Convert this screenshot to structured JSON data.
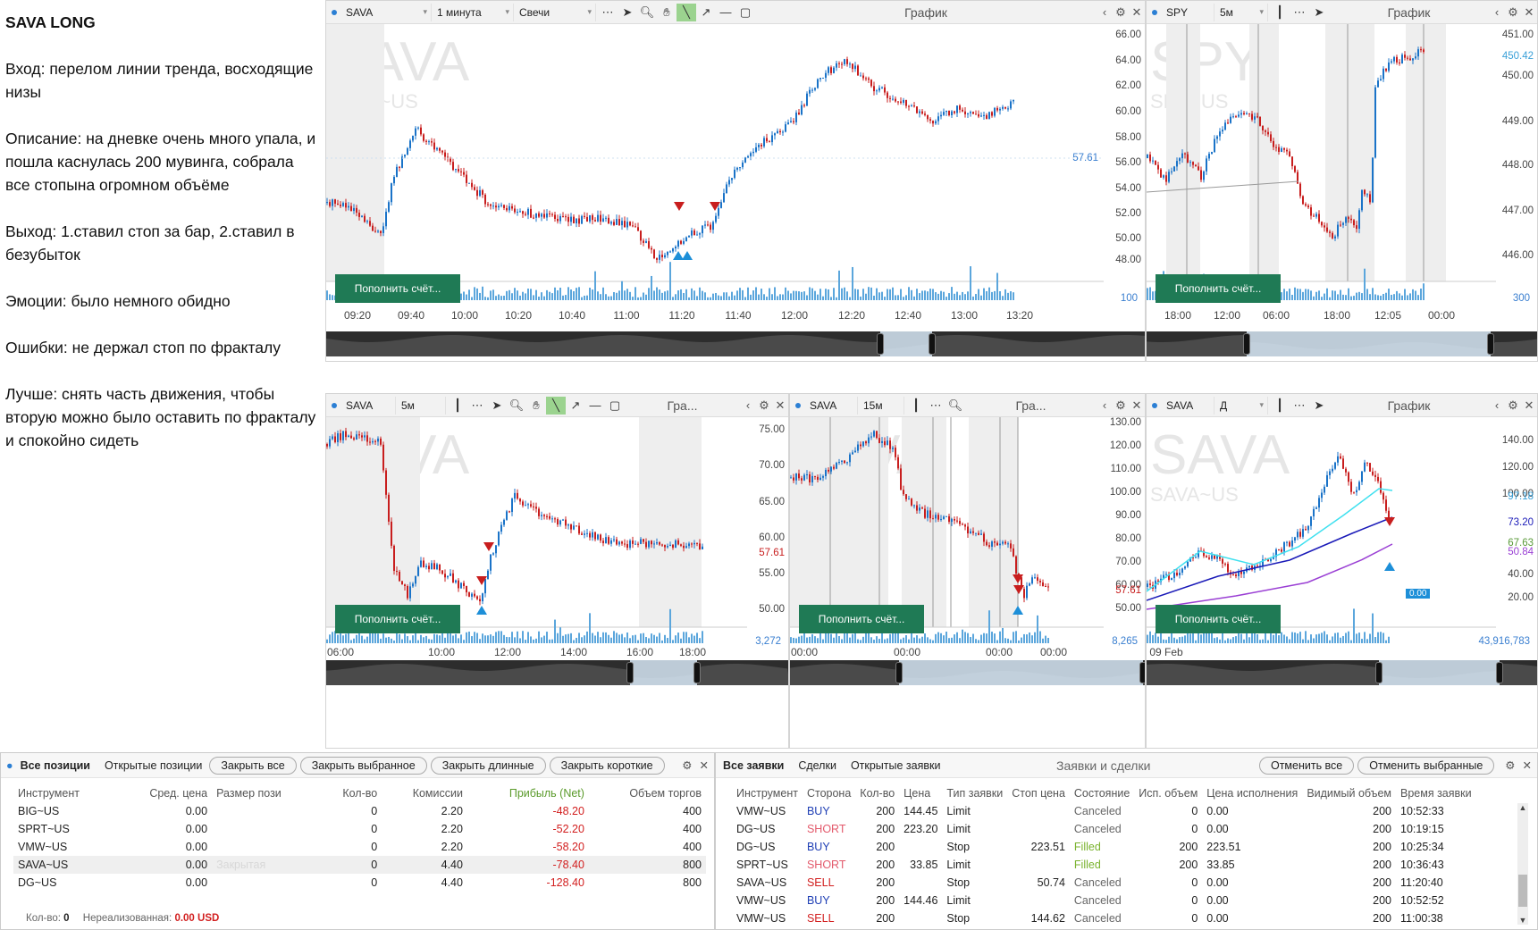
{
  "notes": {
    "title": "SAVA LONG",
    "entry": "Вход: перелом линии тренда, восходящие низы",
    "description": "Описание: на дневке очень много упала, и пошла каснулась 200 мувинга, собрала все стопына огромном объёме",
    "exit": "Выход: 1.ставил стоп за бар, 2.ставил в безубыток",
    "emotions": "Эмоции: было немного обидно",
    "mistakes": "Ошибки: не держал стоп по фракталу",
    "better": "Лучше: снять часть движения, чтобы вторую можно было оставить по фракталу и спокойно сидеть"
  },
  "common": {
    "graph_label": "График",
    "graph_short": "Гра...",
    "fund_button": "Пополнить счёт..."
  },
  "colors": {
    "up": "#1a73c8",
    "down": "#c81e1e",
    "green_btn": "#1f7a55",
    "ma_cyan": "#3fe0ef",
    "ma_blue": "#1a1ab8",
    "ma_purple": "#9a3fd4"
  },
  "charts": [
    {
      "id": "c1",
      "symbol": "SAVA",
      "sub": "SAVA~US",
      "interval": "1 минута",
      "type": "Свечи",
      "yticks": [
        "66.00",
        "64.00",
        "62.00",
        "60.00",
        "58.00",
        "56.00",
        "54.00",
        "52.00",
        "50.00",
        "48.00"
      ],
      "xticks": [
        "09:20",
        "09:40",
        "10:00",
        "10:20",
        "10:40",
        "11:00",
        "11:20",
        "11:40",
        "12:00",
        "12:20",
        "12:40",
        "13:00",
        "13:20"
      ],
      "price": "57.61",
      "vol": "100"
    },
    {
      "id": "c2",
      "symbol": "SPY",
      "sub": "SPY~US",
      "interval": "5м",
      "yticks": [
        "451.00",
        "450.42",
        "450.00",
        "449.00",
        "448.00",
        "447.00",
        "446.00"
      ],
      "xticks": [
        "18:00",
        "12:00",
        "06:00",
        "18:00",
        "12:05",
        "00:00"
      ],
      "vol": "300"
    },
    {
      "id": "c3",
      "symbol": "SAVA",
      "sub": "SAVA~US",
      "interval": "5м",
      "yticks": [
        "75.00",
        "70.00",
        "65.00",
        "60.00",
        "57.61",
        "55.00",
        "50.00"
      ],
      "xticks": [
        "06:00",
        "10:00",
        "12:00",
        "14:00",
        "16:00",
        "18:00"
      ],
      "vol": "3,272"
    },
    {
      "id": "c4",
      "symbol": "SAVA",
      "sub": "SAVA~US",
      "interval": "15м",
      "yticks": [
        "130.00",
        "120.00",
        "110.00",
        "100.00",
        "90.00",
        "80.00",
        "70.00",
        "60.00",
        "57.61",
        "50.00"
      ],
      "xticks": [
        "00:00",
        "00:00",
        "00:00",
        "00:00"
      ],
      "vol": "8,265"
    },
    {
      "id": "c5",
      "symbol": "SAVA",
      "sub": "SAVA~US",
      "interval": "Д",
      "yticks": [
        "140.00",
        "120.00",
        "100.00",
        "97.18",
        "73.20",
        "67.63",
        "50.84",
        "40.00",
        "20.00"
      ],
      "xticks": [
        "09 Feb"
      ],
      "zero": "0.00",
      "vol": "43,916,783"
    }
  ],
  "positions": {
    "tabs": [
      "Все позиции",
      "Открытые позиции"
    ],
    "buttons": [
      "Закрыть все",
      "Закрыть выбранное",
      "Закрыть длинные",
      "Закрыть короткие"
    ],
    "headers": [
      "Инструмент",
      "Сред. цена",
      "Размер пози",
      "Кол-во",
      "Комиссии",
      "Прибыль (Net)",
      "Объем торгов"
    ],
    "rows": [
      [
        "BIG~US",
        "0.00",
        "",
        "0",
        "2.20",
        "-48.20",
        "400"
      ],
      [
        "SPRT~US",
        "0.00",
        "",
        "0",
        "2.20",
        "-52.20",
        "400"
      ],
      [
        "VMW~US",
        "0.00",
        "",
        "0",
        "2.20",
        "-58.20",
        "400"
      ],
      [
        "SAVA~US",
        "0.00",
        "Закрытая",
        "0",
        "4.40",
        "-78.40",
        "800"
      ],
      [
        "DG~US",
        "0.00",
        "",
        "0",
        "4.40",
        "-128.40",
        "800"
      ]
    ],
    "footer_qty_label": "Кол-во:",
    "footer_qty": "0",
    "footer_unreal_label": "Нереализованная:",
    "footer_unreal": "0.00 USD"
  },
  "orders": {
    "tabs": [
      "Все заявки",
      "Сделки",
      "Открытые заявки"
    ],
    "title": "Заявки и сделки",
    "buttons": [
      "Отменить все",
      "Отменить выбранные"
    ],
    "headers": [
      "Инструмент",
      "Сторона",
      "Кол-во",
      "Цена",
      "Тип заявки",
      "Стоп цена",
      "Состояние",
      "Исп. объем",
      "Цена исполнения",
      "Видимый объем",
      "Время заявки"
    ],
    "rows": [
      [
        "VMW~US",
        "BUY",
        "200",
        "144.45",
        "Limit",
        "",
        "Canceled",
        "0",
        "0.00",
        "200",
        "10:52:33"
      ],
      [
        "DG~US",
        "SHORT",
        "200",
        "223.20",
        "Limit",
        "",
        "Canceled",
        "0",
        "0.00",
        "200",
        "10:19:15"
      ],
      [
        "DG~US",
        "BUY",
        "200",
        "",
        "Stop",
        "223.51",
        "Filled",
        "200",
        "223.51",
        "200",
        "10:25:34"
      ],
      [
        "SPRT~US",
        "SHORT",
        "200",
        "33.85",
        "Limit",
        "",
        "Filled",
        "200",
        "33.85",
        "200",
        "10:36:43"
      ],
      [
        "SAVA~US",
        "SELL",
        "200",
        "",
        "Stop",
        "50.74",
        "Canceled",
        "0",
        "0.00",
        "200",
        "11:20:40"
      ],
      [
        "VMW~US",
        "BUY",
        "200",
        "144.46",
        "Limit",
        "",
        "Canceled",
        "0",
        "0.00",
        "200",
        "10:52:52"
      ],
      [
        "VMW~US",
        "SELL",
        "200",
        "",
        "Stop",
        "144.62",
        "Canceled",
        "0",
        "0.00",
        "200",
        "11:00:38"
      ]
    ]
  }
}
